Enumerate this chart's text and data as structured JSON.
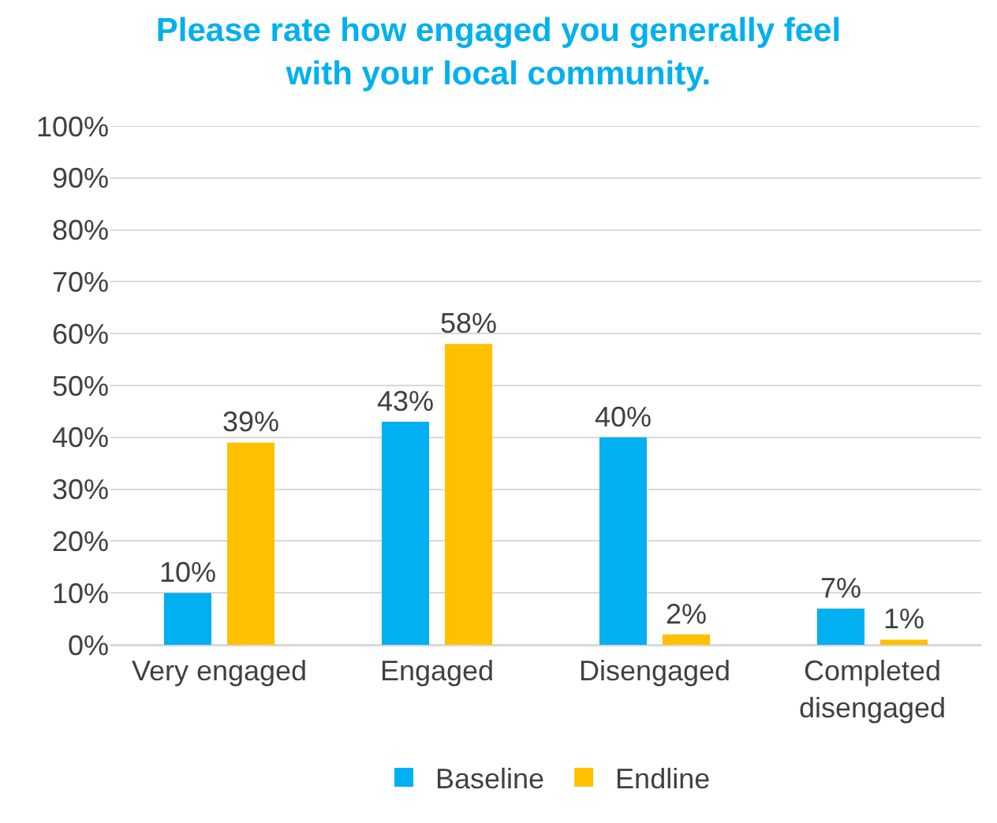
{
  "chart_data": {
    "type": "bar",
    "title": "Please rate how engaged you generally feel with your local community.",
    "categories": [
      "Very engaged",
      "Engaged",
      "Disengaged",
      "Completed disengaged"
    ],
    "series": [
      {
        "name": "Baseline",
        "color": "#00b0f0",
        "values": [
          10,
          43,
          40,
          7
        ],
        "value_labels": [
          "10%",
          "43%",
          "40%",
          "7%"
        ]
      },
      {
        "name": "Endline",
        "color": "#ffc000",
        "values": [
          39,
          58,
          2,
          1
        ],
        "value_labels": [
          "39%",
          "58%",
          "2%",
          "1%"
        ]
      }
    ],
    "ylim": [
      0,
      100
    ],
    "yticks": [
      {
        "value": 0,
        "label": "0%"
      },
      {
        "value": 10,
        "label": "10%"
      },
      {
        "value": 20,
        "label": "20%"
      },
      {
        "value": 30,
        "label": "30%"
      },
      {
        "value": 40,
        "label": "40%"
      },
      {
        "value": 50,
        "label": "50%"
      },
      {
        "value": 60,
        "label": "60%"
      },
      {
        "value": 70,
        "label": "70%"
      },
      {
        "value": 80,
        "label": "80%"
      },
      {
        "value": 90,
        "label": "90%"
      },
      {
        "value": 100,
        "label": "100%"
      }
    ],
    "grid": "y",
    "legend": "bottom"
  }
}
